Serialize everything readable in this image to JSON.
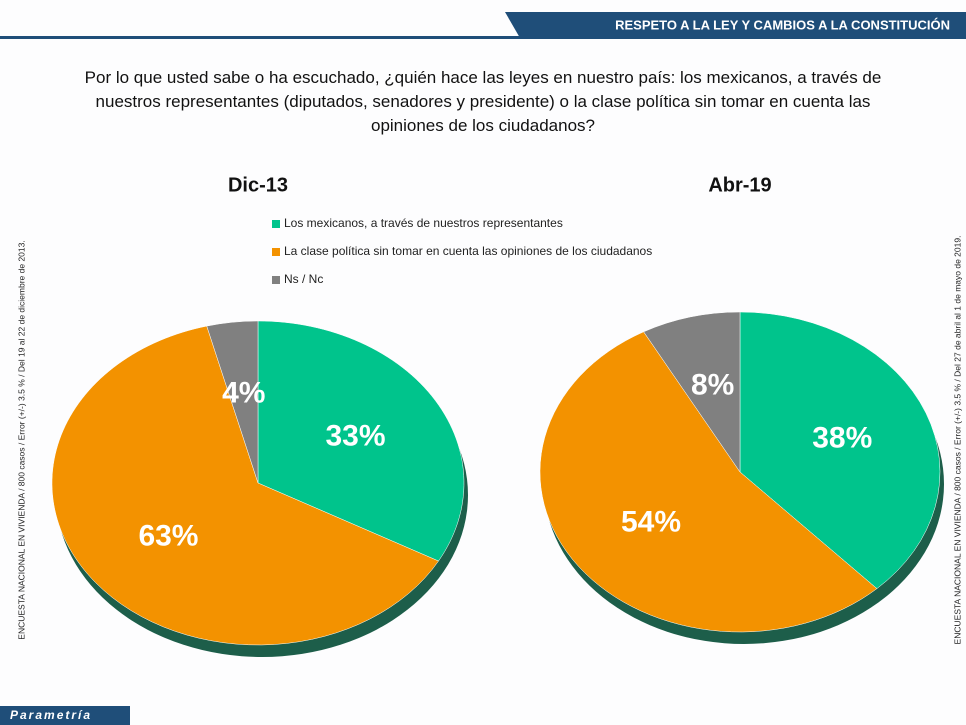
{
  "header": {
    "title": "RESPETO  A LA LEY Y CAMBIOS  A LA CONSTITUCIÓN"
  },
  "question": "Por lo que usted sabe o ha escuchado, ¿quién hace las leyes en nuestro país: los mexicanos, a través de nuestros representantes (diputados, senadores y presidente) o la clase política sin tomar en cuenta las opiniones de los ciudadanos?",
  "legend": {
    "labels": [
      "Los mexicanos, a través de nuestros representantes",
      "La clase política sin tomar en cuenta las opiniones de los ciudadanos",
      "Ns / Nc"
    ]
  },
  "notes": {
    "left": "ENCUESTA NACIONAL EN VIVIENDA / 800 casos / Error (+/-) 3.5 % / Del 19 al 22 de diciembre de 2013.",
    "right": "ENCUESTA NACIONAL EN VIVIENDA / 800 casos / Error (+/-) 3.5 % / Del 27 de abril al 1 de mayo de 2019."
  },
  "brand": "Parametría",
  "chart_data": [
    {
      "type": "pie",
      "title": "Dic-13",
      "values": [
        33,
        63,
        4
      ],
      "value_labels": [
        "33%",
        "63%",
        "4%"
      ],
      "colors": [
        "#00c48c",
        "#f39200",
        "#808080"
      ]
    },
    {
      "type": "pie",
      "title": "Abr-19",
      "values": [
        38,
        54,
        8
      ],
      "value_labels": [
        "38%",
        "54%",
        "8%"
      ],
      "colors": [
        "#00c48c",
        "#f39200",
        "#808080"
      ]
    }
  ]
}
